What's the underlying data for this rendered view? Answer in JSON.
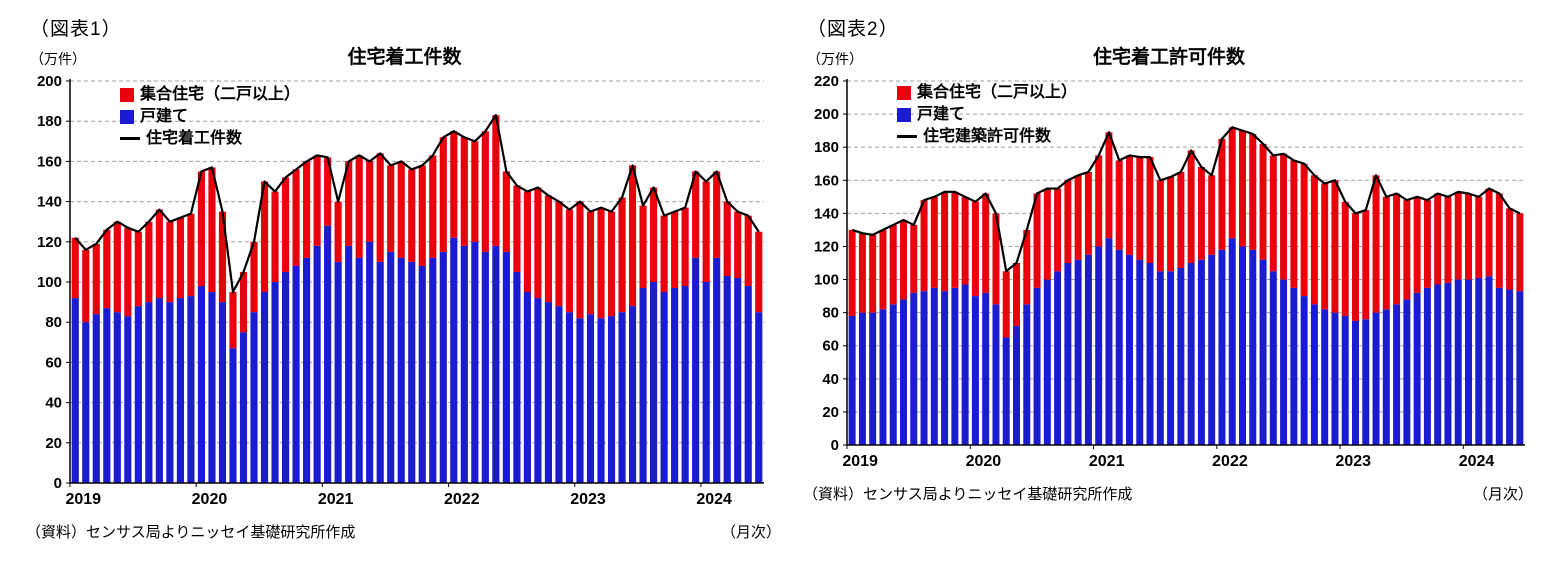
{
  "colors": {
    "multi_family": "#e8000d",
    "single_family": "#1b1bd0",
    "total_line": "#000000",
    "grid": "#a0a0a0",
    "axis": "#000000"
  },
  "figure1": {
    "tag": "（図表1）",
    "unit_label": "（万件）",
    "title": "住宅着工件数",
    "legend": {
      "multi": "集合住宅（二戸以上）",
      "single": "戸建て",
      "line": "住宅着工件数"
    },
    "source": "（資料）センサス局よりニッセイ基礎研究所作成",
    "frequency_label": "（月次）"
  },
  "figure2": {
    "tag": "（図表2）",
    "unit_label": "（万件）",
    "title": "住宅着工許可件数",
    "legend": {
      "multi": "集合住宅（二戸以上）",
      "single": "戸建て",
      "line": "住宅建築許可件数"
    },
    "source": "（資料）センサス局よりニッセイ基礎研究所作成",
    "frequency_label": "（月次）"
  },
  "chart_data": [
    {
      "type": "bar",
      "stacked": true,
      "title": "住宅着工件数",
      "x_period": {
        "start": "2019-01",
        "end": "2024-06",
        "freq": "monthly"
      },
      "year_labels": [
        "2019",
        "2020",
        "2021",
        "2022",
        "2023",
        "2024"
      ],
      "year_tick_indices": [
        0,
        12,
        24,
        36,
        48,
        60
      ],
      "ylim": [
        0,
        200
      ],
      "ytick_step": 20,
      "ylabel": "（万件）",
      "xlabel_note": "（月次）",
      "grid": "dashed-horizontal",
      "legend_position": "top-left-inside",
      "series": [
        {
          "name": "戸建て",
          "role": "single",
          "values": [
            92,
            80,
            84,
            87,
            85,
            83,
            88,
            90,
            92,
            90,
            92,
            93,
            98,
            95,
            90,
            67,
            75,
            85,
            95,
            100,
            105,
            108,
            112,
            118,
            128,
            110,
            118,
            112,
            120,
            110,
            115,
            112,
            110,
            108,
            112,
            115,
            122,
            118,
            120,
            115,
            118,
            115,
            105,
            95,
            92,
            90,
            88,
            85,
            82,
            84,
            82,
            83,
            85,
            88,
            97,
            100,
            95,
            97,
            98,
            112,
            100,
            112,
            103,
            102,
            98,
            85
          ]
        },
        {
          "name": "集合住宅（二戸以上）",
          "role": "multi",
          "values": [
            30,
            36,
            35,
            39,
            45,
            44,
            37,
            40,
            44,
            40,
            40,
            41,
            57,
            62,
            45,
            28,
            30,
            35,
            55,
            45,
            47,
            48,
            48,
            45,
            34,
            30,
            42,
            51,
            40,
            54,
            43,
            48,
            46,
            50,
            51,
            57,
            53,
            54,
            50,
            60,
            65,
            40,
            43,
            50,
            55,
            53,
            52,
            51,
            58,
            51,
            55,
            52,
            57,
            70,
            41,
            47,
            38,
            38,
            39,
            43,
            50,
            43,
            37,
            33,
            35,
            40
          ]
        }
      ],
      "line": {
        "name": "住宅着工件数",
        "definition": "sum of stacked series"
      }
    },
    {
      "type": "bar",
      "stacked": true,
      "title": "住宅着工許可件数",
      "x_period": {
        "start": "2019-01",
        "end": "2024-06",
        "freq": "monthly"
      },
      "year_labels": [
        "2019",
        "2020",
        "2021",
        "2022",
        "2023",
        "2024"
      ],
      "year_tick_indices": [
        0,
        12,
        24,
        36,
        48,
        60
      ],
      "ylim": [
        0,
        220
      ],
      "ytick_step": 20,
      "ylabel": "（万件）",
      "xlabel_note": "（月次）",
      "grid": "dashed-horizontal",
      "legend_position": "top-left-inside",
      "series": [
        {
          "name": "戸建て",
          "role": "single",
          "values": [
            78,
            80,
            80,
            82,
            85,
            88,
            92,
            93,
            95,
            93,
            95,
            97,
            90,
            92,
            85,
            65,
            72,
            85,
            95,
            100,
            105,
            110,
            112,
            115,
            120,
            125,
            118,
            115,
            112,
            110,
            105,
            105,
            107,
            110,
            112,
            115,
            118,
            125,
            120,
            118,
            112,
            105,
            100,
            95,
            90,
            85,
            82,
            80,
            78,
            75,
            76,
            80,
            82,
            85,
            88,
            92,
            95,
            97,
            98,
            100,
            100,
            101,
            102,
            95,
            94,
            93
          ]
        },
        {
          "name": "集合住宅（二戸以上）",
          "role": "multi",
          "values": [
            52,
            48,
            47,
            48,
            48,
            48,
            41,
            55,
            55,
            60,
            58,
            53,
            57,
            60,
            55,
            40,
            38,
            45,
            57,
            55,
            50,
            50,
            51,
            50,
            55,
            64,
            54,
            60,
            62,
            64,
            55,
            57,
            58,
            68,
            56,
            48,
            67,
            67,
            70,
            70,
            70,
            70,
            76,
            77,
            80,
            78,
            76,
            80,
            69,
            65,
            66,
            83,
            68,
            67,
            60,
            58,
            53,
            55,
            52,
            53,
            52,
            49,
            53,
            57,
            49,
            47
          ]
        }
      ],
      "line": {
        "name": "住宅建築許可件数",
        "definition": "sum of stacked series"
      }
    }
  ]
}
